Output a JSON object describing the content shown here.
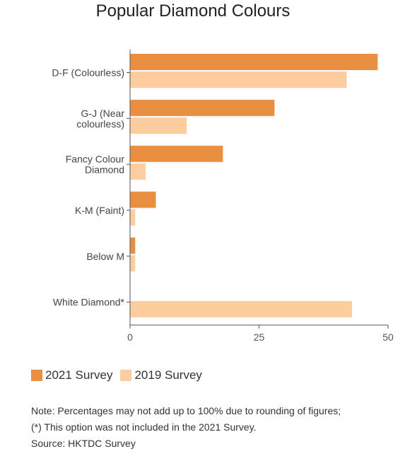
{
  "chart_data": {
    "type": "bar",
    "orientation": "horizontal",
    "title": "Popular Diamond Colours",
    "categories": [
      "D-F (Colourless)",
      "G-J (Near colourless)",
      "Fancy Colour Diamond",
      "K-M (Faint)",
      "Below M",
      "White Diamond*"
    ],
    "category_lines": [
      [
        "D-F (Colourless)"
      ],
      [
        "G-J (Near",
        "colourless)"
      ],
      [
        "Fancy Colour",
        "Diamond"
      ],
      [
        "K-M (Faint)"
      ],
      [
        "Below M"
      ],
      [
        "White Diamond*"
      ]
    ],
    "series": [
      {
        "name": "2021 Survey",
        "color": "#e88f42",
        "values": [
          48,
          28,
          18,
          5,
          1,
          null
        ]
      },
      {
        "name": "2019 Survey",
        "color": "#fdcc9f",
        "values": [
          42,
          11,
          3,
          1,
          1,
          43
        ]
      }
    ],
    "xlim": [
      0,
      50
    ],
    "xticks": [
      "0",
      "25",
      "50"
    ],
    "xlabel": "",
    "ylabel": "",
    "grid": false,
    "legend_position": "bottom-left"
  },
  "notes": [
    "Note: Percentages may not add up to 100% due to rounding of figures;",
    "(*) This option was not included in the 2021 Survey.",
    "Source: HKTDC Survey"
  ]
}
